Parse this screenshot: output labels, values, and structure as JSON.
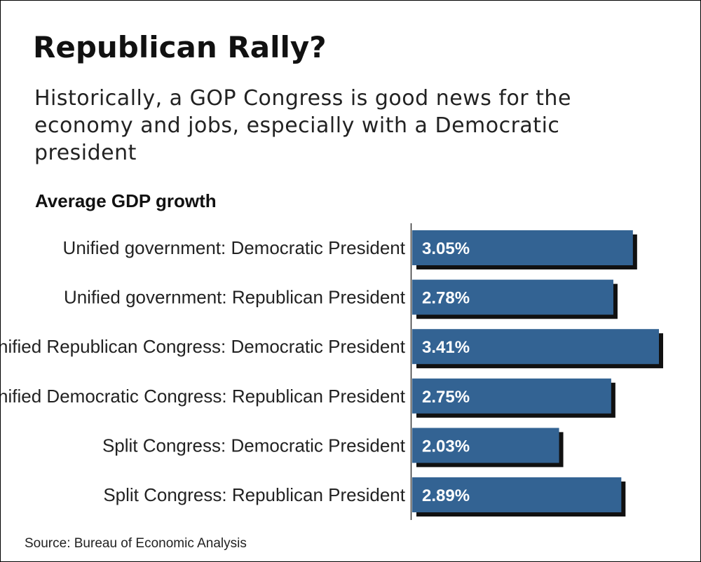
{
  "header": {
    "title": "Republican Rally?",
    "subtitle": "Historically, a GOP Congress is good news for the economy and jobs, especially with a Democratic president"
  },
  "source": "Source: Bureau of Economic Analysis",
  "colors": {
    "bar": "#336393",
    "bar_shadow": "#111111",
    "value_text": "#ffffff",
    "axis": "#333333"
  },
  "chart_data": {
    "type": "bar",
    "orientation": "horizontal",
    "title": "Average GDP growth",
    "categories": [
      "Unified government: Democratic President",
      "Unified government: Republican President",
      "Unified Republican Congress: Democratic President",
      "Unified Democratic Congress: Republican President",
      "Split Congress: Democratic President",
      "Split Congress: Republican President"
    ],
    "values": [
      3.05,
      2.78,
      3.41,
      2.75,
      2.03,
      2.89
    ],
    "value_labels": [
      "3.05%",
      "2.78%",
      "3.41%",
      "2.75%",
      "2.03%",
      "2.89%"
    ],
    "unit": "%",
    "xlim": [
      0,
      3.41
    ],
    "xlabel": "",
    "ylabel": "",
    "grid": false
  }
}
